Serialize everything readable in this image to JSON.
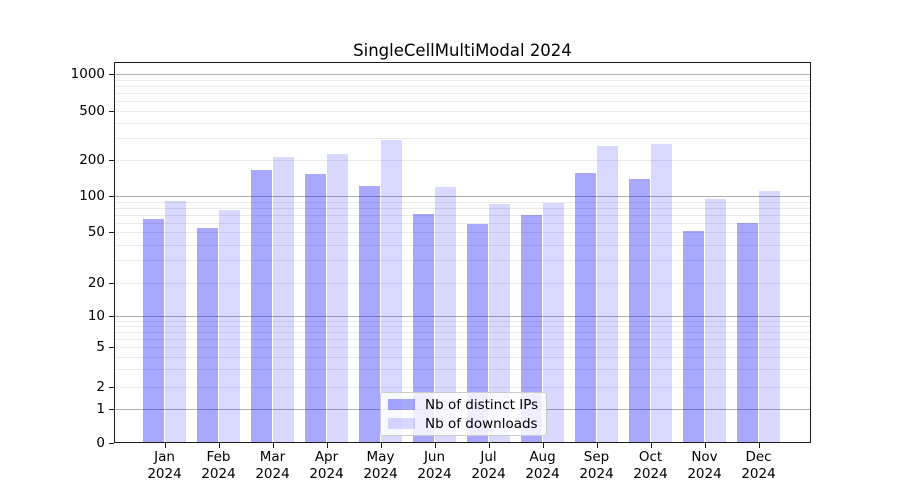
{
  "title": "SingleCellMultiModal 2024",
  "chart_data": {
    "type": "bar",
    "title": "SingleCellMultiModal 2024",
    "months": [
      "Jan",
      "Feb",
      "Mar",
      "Apr",
      "May",
      "Jun",
      "Jul",
      "Aug",
      "Sep",
      "Oct",
      "Nov",
      "Dec"
    ],
    "year": "2024",
    "categories": [
      "Jan 2024",
      "Feb 2024",
      "Mar 2024",
      "Apr 2024",
      "May 2024",
      "Jun 2024",
      "Jul 2024",
      "Aug 2024",
      "Sep 2024",
      "Oct 2024",
      "Nov 2024",
      "Dec 2024"
    ],
    "series": [
      {
        "name": "Nb of distinct IPs",
        "values": [
          65,
          54,
          164,
          151,
          121,
          71,
          59,
          70,
          154,
          138,
          51,
          60
        ],
        "color": "rgba(0,0,255,0.34)"
      },
      {
        "name": "Nb of downloads",
        "values": [
          91,
          77,
          210,
          224,
          292,
          118,
          86,
          87,
          258,
          270,
          94,
          110
        ],
        "color": "rgba(0,0,255,0.15)"
      }
    ],
    "xlabel": "",
    "ylabel": "",
    "yscale": "symlog (linear 0-1, logarithmic above)",
    "ylim": [
      0,
      1250
    ],
    "ytick_values": [
      0,
      1,
      2,
      5,
      10,
      20,
      50,
      100,
      200,
      500,
      1000
    ],
    "ytick_labels": [
      "0",
      "1",
      "2",
      "5",
      "10",
      "20",
      "50",
      "100",
      "200",
      "500",
      "1000"
    ],
    "grid": true,
    "major_grid_values": [
      1,
      10,
      100,
      1000
    ],
    "minor_grid_values": [
      2,
      3,
      4,
      5,
      6,
      7,
      8,
      9,
      20,
      30,
      40,
      50,
      60,
      70,
      80,
      90,
      200,
      300,
      400,
      500,
      600,
      700,
      800,
      900
    ],
    "legend_position": "lower center",
    "colors": {
      "distinct_ips_bar": "rgba(0,0,255,0.34)",
      "downloads_bar": "rgba(0,0,255,0.15)",
      "grid_minor": "#e9e9e9",
      "grid_major": "#b0b0b0",
      "spine": "#1a1a1a",
      "background": "#ffffff"
    }
  }
}
